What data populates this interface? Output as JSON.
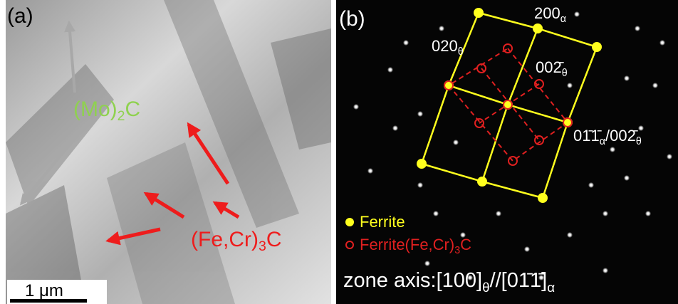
{
  "panel_a": {
    "label": "(a)",
    "mo2c": [
      "(Mo)",
      "2",
      "C"
    ],
    "fecr3c": [
      "(Fe,Cr)",
      "3",
      "C"
    ],
    "scale_bar": "1 μm"
  },
  "panel_b": {
    "label": "(b)",
    "spots": {
      "s200": [
        "200",
        "α"
      ],
      "s020": [
        "020",
        "θ"
      ],
      "s002": [
        "002̄",
        "θ"
      ],
      "s011": [
        "01̄1̄",
        "α",
        "/002̄",
        "θ"
      ]
    },
    "legend": {
      "ferrite": "Ferrite",
      "carbide": [
        "Ferrite(Fe,Cr)",
        "3",
        "C"
      ]
    },
    "zone_axis": [
      "zone axis:[100]",
      "θ",
      "//[01̄1̄]",
      "α"
    ]
  }
}
